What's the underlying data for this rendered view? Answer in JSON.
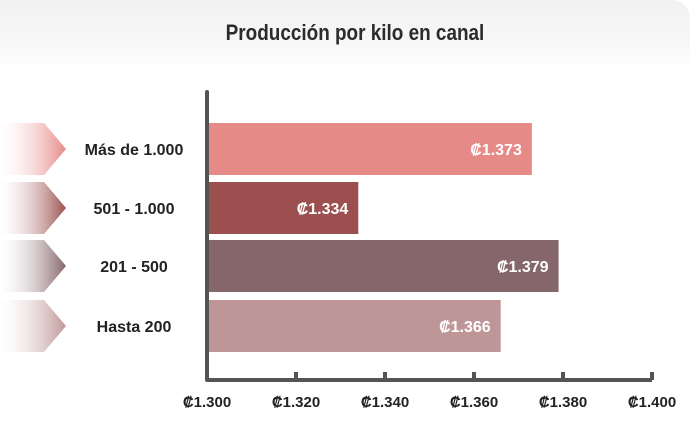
{
  "chart_data": {
    "type": "bar",
    "orientation": "horizontal",
    "title": "Producción por kilo en canal",
    "categories": [
      "Más de 1.000",
      "501 - 1.000",
      "201 - 500",
      "Hasta 200"
    ],
    "values": [
      1373,
      1334,
      1379,
      1366
    ],
    "value_labels": [
      "₡1.373",
      "₡1.334",
      "₡1.379",
      "₡1.366"
    ],
    "colors": [
      "#e68a88",
      "#9c4f4f",
      "#85666b",
      "#bf9697"
    ],
    "xlim": [
      1300,
      1400
    ],
    "xticks": [
      1300,
      1320,
      1340,
      1360,
      1380,
      1400
    ],
    "xtick_labels": [
      "₡1.300",
      "₡1.320",
      "₡1.340",
      "₡1.360",
      "₡1.380",
      "₡1.400"
    ],
    "xlabel": "",
    "ylabel": "",
    "grid": false,
    "legend": "none"
  }
}
